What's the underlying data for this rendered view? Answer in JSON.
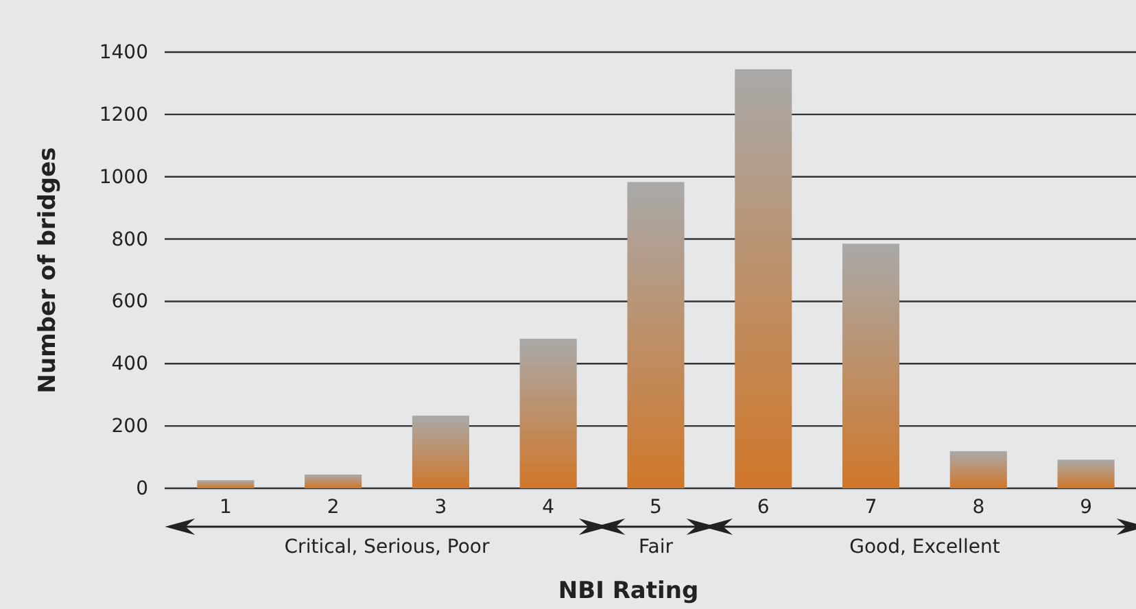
{
  "chart_data": {
    "type": "bar",
    "xlabel": "NBI Rating",
    "ylabel": "Number of bridges",
    "categories": [
      "1",
      "2",
      "3",
      "4",
      "5",
      "6",
      "7",
      "8",
      "9"
    ],
    "values": [
      26,
      44,
      233,
      480,
      983,
      1345,
      785,
      119,
      92
    ],
    "color": "#d0772a",
    "ylim": [
      0,
      1400
    ],
    "yticks": [
      0,
      200,
      400,
      600,
      800,
      1000,
      1200,
      1400
    ],
    "grid": "y",
    "annotations": [
      "Critical, Serious, Poor",
      "Fair",
      "Good, Excellent"
    ]
  }
}
